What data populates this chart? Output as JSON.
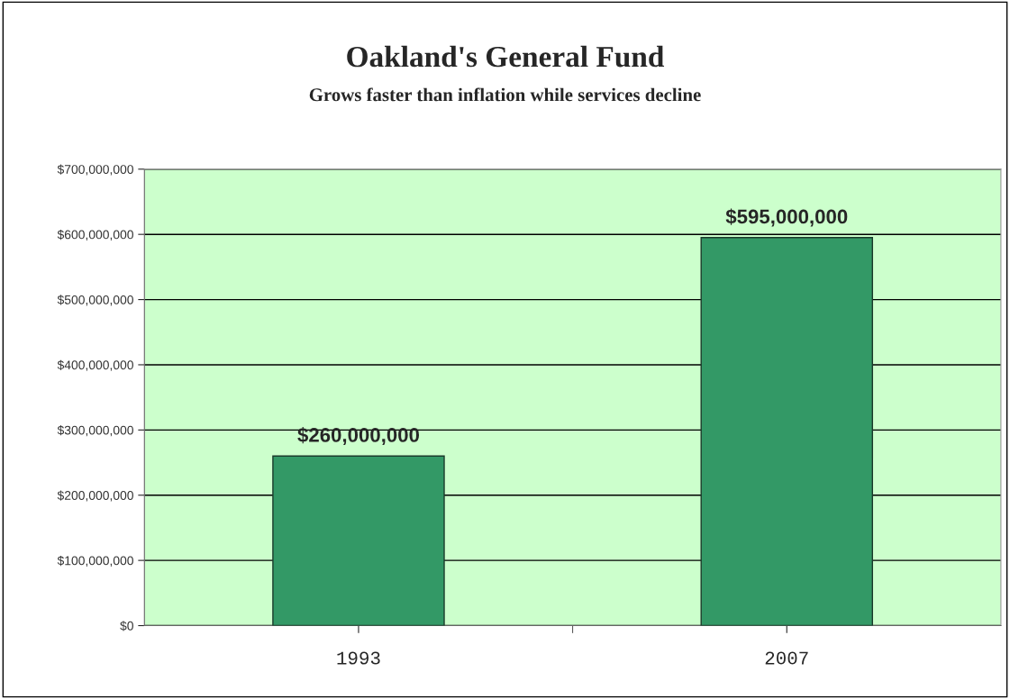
{
  "chart_data": {
    "type": "bar",
    "title": "Oakland's General Fund",
    "subtitle": "Grows faster than inflation while services decline",
    "categories": [
      "1993",
      "2007"
    ],
    "values": [
      260000000,
      595000000
    ],
    "color": "#339966",
    "value_labels": [
      "$260,000,000",
      "$595,000,000"
    ],
    "ylim": [
      0,
      700000000
    ],
    "yticks": [
      {
        "value": 0,
        "label": "$0"
      },
      {
        "value": 100000000,
        "label": "$100,000,000"
      },
      {
        "value": 200000000,
        "label": "$200,000,000"
      },
      {
        "value": 300000000,
        "label": "$300,000,000"
      },
      {
        "value": 400000000,
        "label": "$400,000,000"
      },
      {
        "value": 500000000,
        "label": "$500,000,000"
      },
      {
        "value": 600000000,
        "label": "$600,000,000"
      },
      {
        "value": 700000000,
        "label": "$700,000,000"
      }
    ],
    "grid": "y",
    "legend": false
  }
}
